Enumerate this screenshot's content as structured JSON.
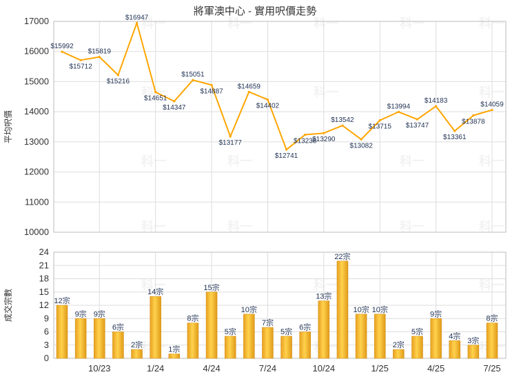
{
  "chart_data": [
    {
      "type": "line",
      "title": "將軍澳中心 - 實用呎價走勢",
      "ylabel": "平均呎價",
      "ylim": [
        10000,
        17000
      ],
      "yticks": [
        10000,
        11000,
        12000,
        13000,
        14000,
        15000,
        16000,
        17000
      ],
      "grid": true,
      "color": "#ffa500",
      "label_prefix": "$",
      "values": [
        15992,
        15712,
        15819,
        15216,
        16947,
        14651,
        14347,
        15051,
        14887,
        13177,
        14659,
        14402,
        12741,
        13238,
        13290,
        13542,
        13082,
        13715,
        13994,
        13747,
        14183,
        13361,
        13878,
        14059
      ]
    },
    {
      "type": "bar",
      "ylabel": "成交宗數",
      "ylim": [
        0,
        24
      ],
      "yticks": [
        0,
        3,
        6,
        9,
        12,
        15,
        18,
        21,
        24
      ],
      "grid": true,
      "color": "#f5b325",
      "label_suffix": "宗",
      "x_tick_labels": [
        "10/23",
        "1/24",
        "4/24",
        "7/24",
        "10/24",
        "1/25",
        "4/25",
        "7/25"
      ],
      "values": [
        12,
        9,
        9,
        6,
        2,
        14,
        1,
        8,
        15,
        5,
        10,
        7,
        5,
        6,
        13,
        22,
        10,
        10,
        2,
        5,
        9,
        4,
        3,
        8
      ]
    }
  ],
  "watermark": "科一"
}
